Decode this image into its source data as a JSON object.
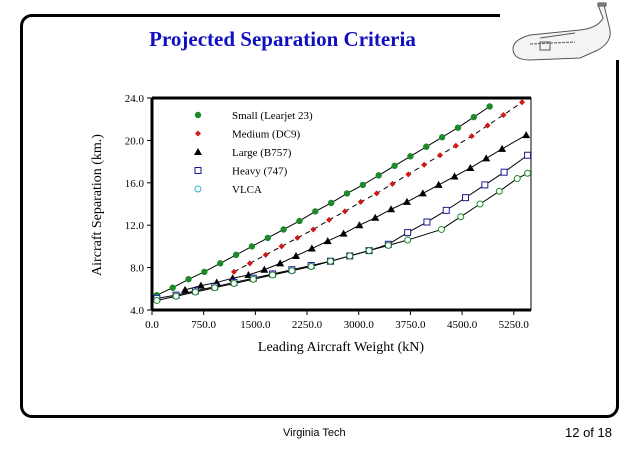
{
  "slide": {
    "title": "Projected Separation Criteria",
    "footer_center": "Virginia Tech",
    "page_indicator": "12 of 18",
    "logo_icon": "cargo-aircraft-icon"
  },
  "chart_data": {
    "type": "line",
    "title": "",
    "xlabel": "Leading Aircraft Weight (kN)",
    "ylabel": "Aircraft Separation (km.)",
    "xlim": [
      0,
      5500
    ],
    "ylim": [
      4.0,
      24.0
    ],
    "xticks": [
      "0.0",
      "750.0",
      "1500.0",
      "2250.0",
      "3000.0",
      "3750.0",
      "4500.0",
      "5250.0"
    ],
    "xtick_values": [
      0,
      750,
      1500,
      2250,
      3000,
      3750,
      4500,
      5250
    ],
    "yticks": [
      "4.0",
      "8.0",
      "12.0",
      "16.0",
      "20.0",
      "24.0"
    ],
    "ytick_values": [
      4,
      8,
      12,
      16,
      20,
      24
    ],
    "grid": false,
    "legend_position": "top-left",
    "series": [
      {
        "name": "Small (Learjet 23)",
        "marker": "filled-circle",
        "color": "#1a8a2a",
        "line": "solid",
        "x": [
          70,
          300,
          530,
          760,
          990,
          1220,
          1450,
          1680,
          1910,
          2140,
          2370,
          2600,
          2830,
          3060,
          3290,
          3520,
          3750,
          3980,
          4210,
          4440,
          4670,
          4900
        ],
        "y": [
          5.4,
          6.1,
          6.9,
          7.6,
          8.4,
          9.2,
          10.0,
          10.8,
          11.6,
          12.4,
          13.3,
          14.1,
          15.0,
          15.8,
          16.7,
          17.6,
          18.5,
          19.4,
          20.3,
          21.2,
          22.2,
          23.2
        ]
      },
      {
        "name": "Medium (DC9)",
        "marker": "filled-diamond",
        "color": "#d01818",
        "line": "dashed",
        "x": [
          1190,
          1420,
          1650,
          1880,
          2110,
          2340,
          2570,
          2800,
          3030,
          3260,
          3490,
          3720,
          3950,
          4180,
          4410,
          4640,
          4870,
          5100,
          5370
        ],
        "y": [
          7.6,
          8.4,
          9.2,
          10.0,
          10.8,
          11.6,
          12.5,
          13.3,
          14.2,
          15.0,
          15.9,
          16.8,
          17.7,
          18.6,
          19.5,
          20.4,
          21.4,
          22.4,
          23.6
        ]
      },
      {
        "name": "Large (B757)",
        "marker": "filled-triangle",
        "color": "#000000",
        "line": "solid",
        "x": [
          480,
          710,
          940,
          1170,
          1400,
          1630,
          1860,
          2090,
          2320,
          2550,
          2780,
          3010,
          3240,
          3470,
          3700,
          3930,
          4160,
          4390,
          4620,
          4850,
          5080,
          5430
        ],
        "y": [
          5.9,
          6.3,
          6.6,
          7.0,
          7.3,
          7.8,
          8.4,
          9.1,
          9.8,
          10.5,
          11.2,
          12.0,
          12.7,
          13.5,
          14.2,
          15.0,
          15.8,
          16.6,
          17.4,
          18.3,
          19.2,
          20.5
        ]
      },
      {
        "name": "Heavy (747)",
        "marker": "open-square",
        "color": "#1a1a90",
        "line": "solid",
        "x": [
          70,
          350,
          630,
          910,
          1190,
          1470,
          1750,
          2030,
          2310,
          2590,
          2870,
          3150,
          3430,
          3710,
          3990,
          4270,
          4550,
          4830,
          5110,
          5450
        ],
        "y": [
          5.1,
          5.4,
          5.8,
          6.2,
          6.6,
          7.0,
          7.4,
          7.8,
          8.2,
          8.6,
          9.1,
          9.6,
          10.2,
          11.3,
          12.3,
          13.4,
          14.6,
          15.8,
          17.0,
          18.6
        ]
      },
      {
        "name": "VLCA",
        "marker": "open-circle",
        "color": "#1a8a2a",
        "legend_color": "#2ab8c8",
        "line": "solid",
        "x": [
          70,
          350,
          630,
          910,
          1190,
          1470,
          1750,
          2030,
          2310,
          2590,
          2870,
          3150,
          3430,
          3710,
          4200,
          4480,
          4760,
          5040,
          5300,
          5450
        ],
        "y": [
          4.9,
          5.3,
          5.7,
          6.1,
          6.5,
          6.9,
          7.3,
          7.7,
          8.1,
          8.6,
          9.1,
          9.6,
          10.1,
          10.6,
          11.6,
          12.8,
          14.0,
          15.2,
          16.4,
          16.9
        ]
      }
    ]
  }
}
